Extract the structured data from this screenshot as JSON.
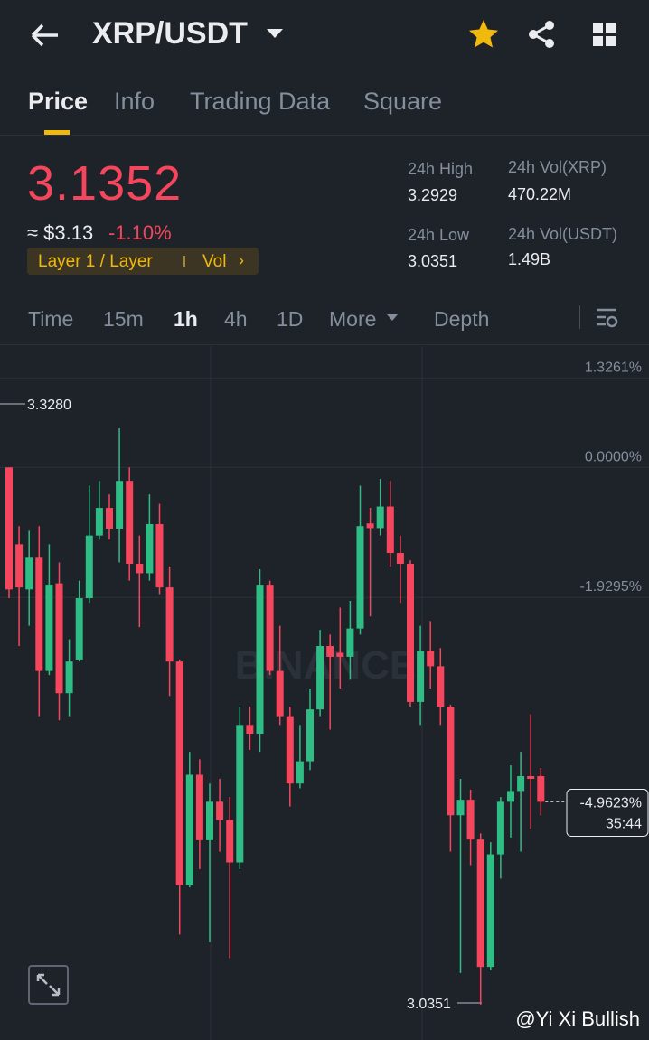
{
  "header": {
    "pair": "XRP/USDT"
  },
  "tabs": [
    "Price",
    "Info",
    "Trading Data",
    "Square"
  ],
  "ticker": {
    "price": "3.1352",
    "usd": "≈ $3.13",
    "change": "-1.10%",
    "tag": "Layer 1 / Layer",
    "tag_link": "Vol"
  },
  "stats": [
    {
      "label": "24h High",
      "value": "3.2929"
    },
    {
      "label": "24h Vol(XRP)",
      "value": "470.22M"
    },
    {
      "label": "24h Low",
      "value": "3.0351"
    },
    {
      "label": "24h Vol(USDT)",
      "value": "1.49B"
    }
  ],
  "intervals": [
    "Time",
    "15m",
    "1h",
    "4h",
    "1D",
    "More",
    "Depth"
  ],
  "chart_data": {
    "type": "candlestick",
    "watermark": "BINANCE",
    "up_color": "#2ebd85",
    "down_color": "#f6465d",
    "ylim": [
      -8.4,
      1.8
    ],
    "yticks": [
      {
        "value": 1.3261,
        "label": "1.3261%"
      },
      {
        "value": 0,
        "label": "0.0000%"
      },
      {
        "value": -1.9295,
        "label": "-1.9295%"
      }
    ],
    "grid": true,
    "high_label": "3.3280",
    "low_label": "3.0351",
    "last_price": {
      "value": -4.9623,
      "label": "-4.9623%"
    },
    "countdown": "35:44",
    "open": [
      0,
      -1.14,
      -1.81,
      -1.34,
      -3.02,
      -1.72,
      -3.35,
      -2.85,
      -1.94,
      -1.01,
      -0.6,
      -0.91,
      -0.2,
      -1.43,
      -1.57,
      -0.84,
      -1.78,
      -2.88,
      -6.2,
      -4.56,
      -5.53,
      -4.96,
      -5.23,
      -5.86,
      -3.82,
      -3.95,
      -1.74,
      -3.02,
      -3.69,
      -4.69,
      -4.36,
      -3.59,
      -2.65,
      -2.75,
      -2.81,
      -2.39,
      -0.83,
      -0.9,
      -0.58,
      -1.27,
      -1.43,
      -3.48,
      -2.72,
      -2.95,
      -3.55,
      -5.16,
      -4.93,
      -5.52,
      -7.41,
      -5.74,
      -4.96,
      -4.8,
      -4.58,
      -4.58
    ],
    "high": [
      0,
      -0.87,
      -0.94,
      -0.87,
      -1.14,
      -1.41,
      -2.55,
      -1.68,
      -0.27,
      -0.2,
      -0.4,
      0.58,
      0,
      -1.01,
      -0.4,
      -0.54,
      -1.47,
      -2.85,
      -4.22,
      -4.33,
      -4.69,
      -4.62,
      -4.89,
      -3.55,
      -3.55,
      -1.51,
      -1.68,
      -2.35,
      -3.55,
      -3.82,
      -3.28,
      -2.41,
      -2.48,
      -2.08,
      -1.98,
      -0.27,
      -0.6,
      -0.17,
      -0.2,
      -1.01,
      -1.38,
      -2.35,
      -2.28,
      -2.68,
      -3.52,
      -4.62,
      -4.78,
      -5.43,
      -5.56,
      -4.89,
      -4.42,
      -4.22,
      -3.66,
      -4.46
    ],
    "low": [
      -1.94,
      -2.65,
      -2.35,
      -3.69,
      -3.08,
      -3.75,
      -3.69,
      -2.88,
      -2.01,
      -1.07,
      -1.07,
      -1.41,
      -1.68,
      -2.37,
      -1.68,
      -1.88,
      -3.39,
      -6.93,
      -6.23,
      -5.96,
      -7.04,
      -5.7,
      -7.28,
      -5.96,
      -4.19,
      -4.22,
      -3.08,
      -3.82,
      -5.03,
      -4.76,
      -4.49,
      -3.69,
      -3.89,
      -3.28,
      -3.15,
      -2.48,
      -2.21,
      -1.01,
      -1.47,
      -2.01,
      -3.55,
      -3.82,
      -3.28,
      -3.82,
      -5.7,
      -7.5,
      -5.9,
      -7.97,
      -7.46,
      -6.1,
      -5.49,
      -5.7,
      -5.36,
      -5.16
    ],
    "close": [
      -1.81,
      -1.78,
      -1.34,
      -3.02,
      -1.74,
      -3.35,
      -2.88,
      -1.94,
      -1.01,
      -0.6,
      -0.91,
      -0.2,
      -1.43,
      -1.57,
      -0.84,
      -1.78,
      -2.88,
      -6.2,
      -4.56,
      -5.53,
      -4.96,
      -5.23,
      -5.86,
      -3.82,
      -3.95,
      -1.74,
      -3.02,
      -3.69,
      -4.69,
      -4.36,
      -3.59,
      -2.65,
      -2.81,
      -2.81,
      -2.39,
      -0.87,
      -0.9,
      -0.58,
      -1.27,
      -1.43,
      -3.48,
      -2.72,
      -2.95,
      -3.55,
      -5.16,
      -4.93,
      -5.52,
      -7.41,
      -5.74,
      -4.96,
      -4.8,
      -4.58,
      -4.62,
      -4.96
    ]
  },
  "credit": "@Yi Xi Bullish"
}
